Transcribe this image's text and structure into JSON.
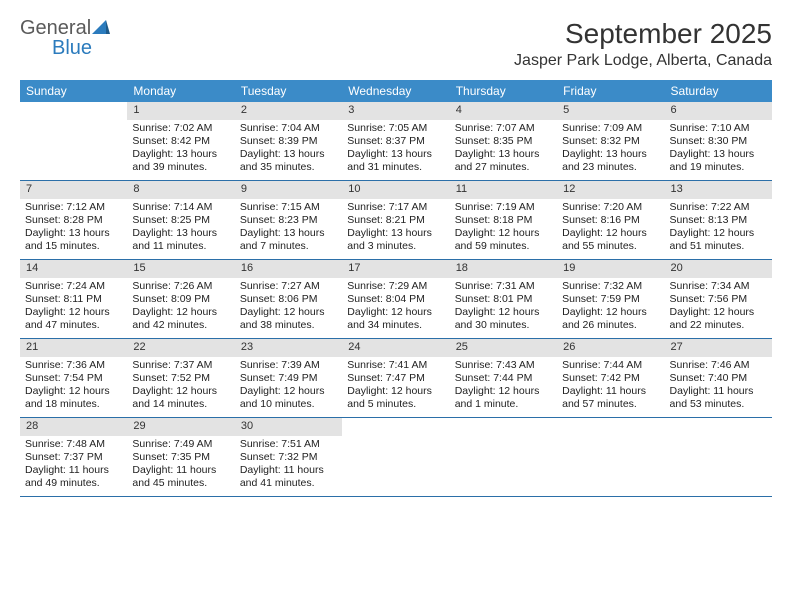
{
  "logo": {
    "text_general": "General",
    "text_blue": "Blue"
  },
  "title": "September 2025",
  "location": "Jasper Park Lodge, Alberta, Canada",
  "colors": {
    "header_bg": "#3b8bc8",
    "header_text": "#ffffff",
    "daynum_bg": "#e3e3e3",
    "row_border": "#2b6fa8",
    "logo_gray": "#5a5a5a",
    "logo_blue": "#2b7bbd"
  },
  "day_names": [
    "Sunday",
    "Monday",
    "Tuesday",
    "Wednesday",
    "Thursday",
    "Friday",
    "Saturday"
  ],
  "weeks": [
    [
      {
        "n": "",
        "sr": "",
        "ss": "",
        "dl1": "",
        "dl2": ""
      },
      {
        "n": "1",
        "sr": "Sunrise: 7:02 AM",
        "ss": "Sunset: 8:42 PM",
        "dl1": "Daylight: 13 hours",
        "dl2": "and 39 minutes."
      },
      {
        "n": "2",
        "sr": "Sunrise: 7:04 AM",
        "ss": "Sunset: 8:39 PM",
        "dl1": "Daylight: 13 hours",
        "dl2": "and 35 minutes."
      },
      {
        "n": "3",
        "sr": "Sunrise: 7:05 AM",
        "ss": "Sunset: 8:37 PM",
        "dl1": "Daylight: 13 hours",
        "dl2": "and 31 minutes."
      },
      {
        "n": "4",
        "sr": "Sunrise: 7:07 AM",
        "ss": "Sunset: 8:35 PM",
        "dl1": "Daylight: 13 hours",
        "dl2": "and 27 minutes."
      },
      {
        "n": "5",
        "sr": "Sunrise: 7:09 AM",
        "ss": "Sunset: 8:32 PM",
        "dl1": "Daylight: 13 hours",
        "dl2": "and 23 minutes."
      },
      {
        "n": "6",
        "sr": "Sunrise: 7:10 AM",
        "ss": "Sunset: 8:30 PM",
        "dl1": "Daylight: 13 hours",
        "dl2": "and 19 minutes."
      }
    ],
    [
      {
        "n": "7",
        "sr": "Sunrise: 7:12 AM",
        "ss": "Sunset: 8:28 PM",
        "dl1": "Daylight: 13 hours",
        "dl2": "and 15 minutes."
      },
      {
        "n": "8",
        "sr": "Sunrise: 7:14 AM",
        "ss": "Sunset: 8:25 PM",
        "dl1": "Daylight: 13 hours",
        "dl2": "and 11 minutes."
      },
      {
        "n": "9",
        "sr": "Sunrise: 7:15 AM",
        "ss": "Sunset: 8:23 PM",
        "dl1": "Daylight: 13 hours",
        "dl2": "and 7 minutes."
      },
      {
        "n": "10",
        "sr": "Sunrise: 7:17 AM",
        "ss": "Sunset: 8:21 PM",
        "dl1": "Daylight: 13 hours",
        "dl2": "and 3 minutes."
      },
      {
        "n": "11",
        "sr": "Sunrise: 7:19 AM",
        "ss": "Sunset: 8:18 PM",
        "dl1": "Daylight: 12 hours",
        "dl2": "and 59 minutes."
      },
      {
        "n": "12",
        "sr": "Sunrise: 7:20 AM",
        "ss": "Sunset: 8:16 PM",
        "dl1": "Daylight: 12 hours",
        "dl2": "and 55 minutes."
      },
      {
        "n": "13",
        "sr": "Sunrise: 7:22 AM",
        "ss": "Sunset: 8:13 PM",
        "dl1": "Daylight: 12 hours",
        "dl2": "and 51 minutes."
      }
    ],
    [
      {
        "n": "14",
        "sr": "Sunrise: 7:24 AM",
        "ss": "Sunset: 8:11 PM",
        "dl1": "Daylight: 12 hours",
        "dl2": "and 47 minutes."
      },
      {
        "n": "15",
        "sr": "Sunrise: 7:26 AM",
        "ss": "Sunset: 8:09 PM",
        "dl1": "Daylight: 12 hours",
        "dl2": "and 42 minutes."
      },
      {
        "n": "16",
        "sr": "Sunrise: 7:27 AM",
        "ss": "Sunset: 8:06 PM",
        "dl1": "Daylight: 12 hours",
        "dl2": "and 38 minutes."
      },
      {
        "n": "17",
        "sr": "Sunrise: 7:29 AM",
        "ss": "Sunset: 8:04 PM",
        "dl1": "Daylight: 12 hours",
        "dl2": "and 34 minutes."
      },
      {
        "n": "18",
        "sr": "Sunrise: 7:31 AM",
        "ss": "Sunset: 8:01 PM",
        "dl1": "Daylight: 12 hours",
        "dl2": "and 30 minutes."
      },
      {
        "n": "19",
        "sr": "Sunrise: 7:32 AM",
        "ss": "Sunset: 7:59 PM",
        "dl1": "Daylight: 12 hours",
        "dl2": "and 26 minutes."
      },
      {
        "n": "20",
        "sr": "Sunrise: 7:34 AM",
        "ss": "Sunset: 7:56 PM",
        "dl1": "Daylight: 12 hours",
        "dl2": "and 22 minutes."
      }
    ],
    [
      {
        "n": "21",
        "sr": "Sunrise: 7:36 AM",
        "ss": "Sunset: 7:54 PM",
        "dl1": "Daylight: 12 hours",
        "dl2": "and 18 minutes."
      },
      {
        "n": "22",
        "sr": "Sunrise: 7:37 AM",
        "ss": "Sunset: 7:52 PM",
        "dl1": "Daylight: 12 hours",
        "dl2": "and 14 minutes."
      },
      {
        "n": "23",
        "sr": "Sunrise: 7:39 AM",
        "ss": "Sunset: 7:49 PM",
        "dl1": "Daylight: 12 hours",
        "dl2": "and 10 minutes."
      },
      {
        "n": "24",
        "sr": "Sunrise: 7:41 AM",
        "ss": "Sunset: 7:47 PM",
        "dl1": "Daylight: 12 hours",
        "dl2": "and 5 minutes."
      },
      {
        "n": "25",
        "sr": "Sunrise: 7:43 AM",
        "ss": "Sunset: 7:44 PM",
        "dl1": "Daylight: 12 hours",
        "dl2": "and 1 minute."
      },
      {
        "n": "26",
        "sr": "Sunrise: 7:44 AM",
        "ss": "Sunset: 7:42 PM",
        "dl1": "Daylight: 11 hours",
        "dl2": "and 57 minutes."
      },
      {
        "n": "27",
        "sr": "Sunrise: 7:46 AM",
        "ss": "Sunset: 7:40 PM",
        "dl1": "Daylight: 11 hours",
        "dl2": "and 53 minutes."
      }
    ],
    [
      {
        "n": "28",
        "sr": "Sunrise: 7:48 AM",
        "ss": "Sunset: 7:37 PM",
        "dl1": "Daylight: 11 hours",
        "dl2": "and 49 minutes."
      },
      {
        "n": "29",
        "sr": "Sunrise: 7:49 AM",
        "ss": "Sunset: 7:35 PM",
        "dl1": "Daylight: 11 hours",
        "dl2": "and 45 minutes."
      },
      {
        "n": "30",
        "sr": "Sunrise: 7:51 AM",
        "ss": "Sunset: 7:32 PM",
        "dl1": "Daylight: 11 hours",
        "dl2": "and 41 minutes."
      },
      {
        "n": "",
        "sr": "",
        "ss": "",
        "dl1": "",
        "dl2": ""
      },
      {
        "n": "",
        "sr": "",
        "ss": "",
        "dl1": "",
        "dl2": ""
      },
      {
        "n": "",
        "sr": "",
        "ss": "",
        "dl1": "",
        "dl2": ""
      },
      {
        "n": "",
        "sr": "",
        "ss": "",
        "dl1": "",
        "dl2": ""
      }
    ]
  ]
}
